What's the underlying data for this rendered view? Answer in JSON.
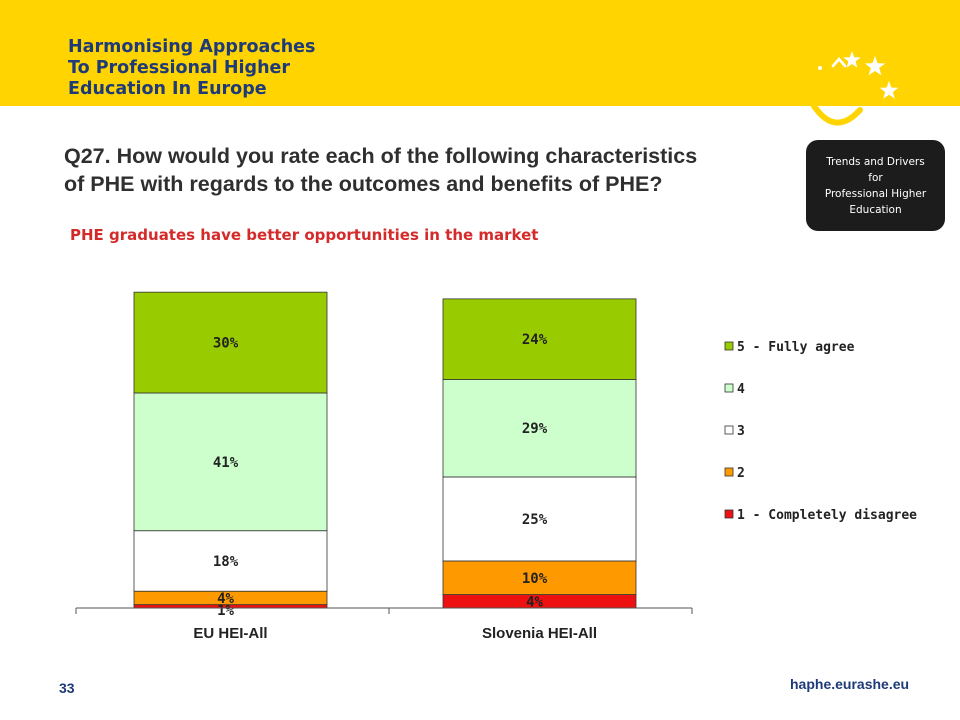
{
  "header": {
    "brand_lines": [
      "Harmonising Approaches",
      "To Professional Higher",
      "Education In Europe"
    ],
    "colors": {
      "banner": "#ffd400",
      "brand_text": "#1e3a78",
      "logo": "#ffffff",
      "smile": "#ffd400"
    }
  },
  "title_lines": [
    "Q27. How would you rate each of the following characteristics",
    "of PHE with regards to the outcomes and benefits of PHE?"
  ],
  "subtitle": "PHE graduates have better opportunities in the market",
  "trends_box": {
    "lines": [
      "Trends and Drivers",
      "for",
      "Professional Higher",
      "Education"
    ]
  },
  "chart_data": {
    "type": "bar",
    "stacked": true,
    "categories": [
      "EU HEI-All",
      "Slovenia HEI-All"
    ],
    "series": [
      {
        "name": "1 - Completely disagree",
        "color": "#ee1111",
        "values": [
          1,
          4
        ],
        "labels": [
          "1%",
          "4%"
        ]
      },
      {
        "name": "2",
        "color": "#ff9900",
        "values": [
          4,
          10
        ],
        "labels": [
          "4%",
          "10%"
        ]
      },
      {
        "name": "3",
        "color": "#ffffff",
        "values": [
          18,
          25
        ],
        "labels": [
          "18%",
          "25%"
        ]
      },
      {
        "name": "4",
        "color": "#ccffcc",
        "values": [
          41,
          29
        ],
        "labels": [
          "41%",
          "29%"
        ]
      },
      {
        "name": "5 - Fully agree",
        "color": "#99cc00",
        "values": [
          30,
          24
        ],
        "labels": [
          "30%",
          "24%"
        ]
      }
    ],
    "legend": {
      "position": "right",
      "order": [
        "5 - Fully agree",
        "4",
        "3",
        "2",
        "1 - Completely disagree"
      ]
    },
    "ylim": [
      0,
      100
    ],
    "grid": false
  },
  "footer": {
    "url": "haphe.eurashe.eu",
    "page_number": "33"
  }
}
